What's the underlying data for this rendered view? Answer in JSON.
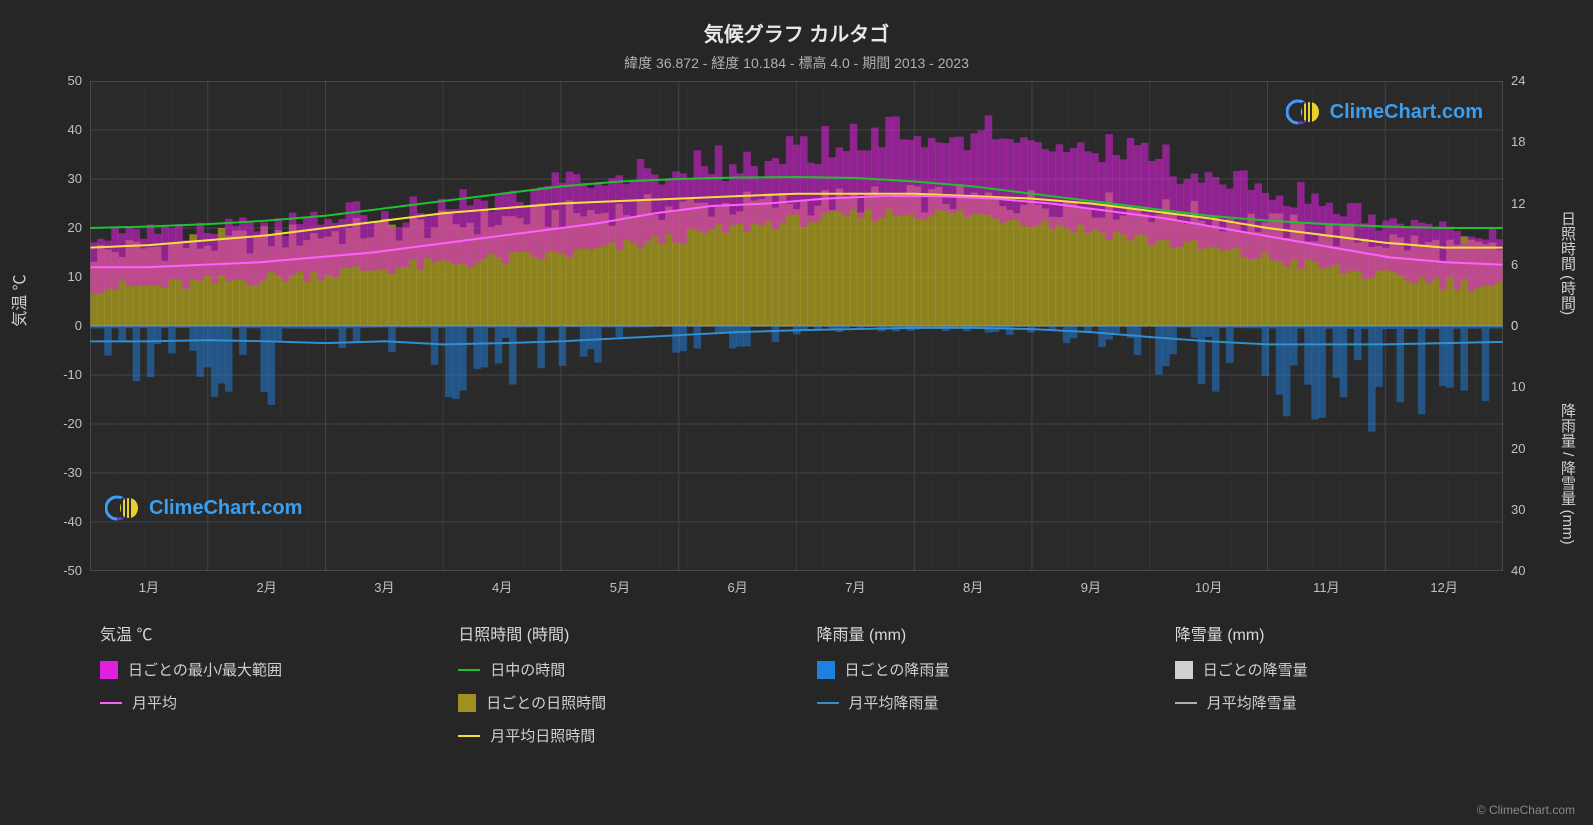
{
  "title": "気候グラフ カルタゴ",
  "subtitle": "緯度 36.872 - 経度 10.184 - 標高 4.0 - 期間 2013 - 2023",
  "watermark_text": "ClimeChart.com",
  "watermark_color": "#3a9ff0",
  "copyright": "© ClimeChart.com",
  "background_color": "#262626",
  "plot_bg": "#2a2a2a",
  "grid_color": "#444444",
  "axis_left": {
    "label": "気温 ℃",
    "min": -50,
    "max": 50,
    "ticks": [
      -50,
      -40,
      -30,
      -20,
      -10,
      0,
      10,
      20,
      30,
      40,
      50
    ]
  },
  "axis_right_top": {
    "label": "日照時間 (時間)",
    "min": 0,
    "max": 24,
    "ticks": [
      0,
      6,
      12,
      18,
      24
    ]
  },
  "axis_right_bottom": {
    "label": "降雨量 / 降雪量 (mm)",
    "min": 0,
    "max": 40,
    "ticks": [
      0,
      10,
      20,
      30,
      40
    ]
  },
  "x_axis": {
    "labels": [
      "1月",
      "2月",
      "3月",
      "4月",
      "5月",
      "6月",
      "7月",
      "8月",
      "9月",
      "10月",
      "11月",
      "12月"
    ]
  },
  "series": {
    "temp_range_daily": {
      "color": "#e020e0",
      "fill_opacity": 0.55,
      "type": "area-bars",
      "low": [
        8,
        8,
        9,
        10,
        11,
        12,
        13,
        14,
        15,
        17,
        19,
        21,
        22,
        23,
        23,
        22,
        20,
        18,
        16,
        14,
        12,
        10,
        9,
        8
      ],
      "high": [
        18,
        19,
        19,
        20,
        21,
        22,
        24,
        26,
        28,
        30,
        31,
        32,
        35,
        38,
        38,
        37,
        35,
        33,
        30,
        27,
        24,
        21,
        19,
        18
      ],
      "spike_high": [
        20,
        21,
        22,
        23,
        25,
        27,
        29,
        31,
        33,
        35,
        37,
        39,
        42,
        44,
        45,
        44,
        42,
        39,
        36,
        33,
        29,
        25,
        22,
        20
      ]
    },
    "temp_avg_monthly": {
      "color": "#ff60ff",
      "line_width": 2,
      "type": "line",
      "values": [
        12,
        12,
        12.5,
        13,
        14,
        15,
        16.5,
        18,
        19.5,
        21,
        23,
        24.5,
        25,
        26,
        26.5,
        26.5,
        26,
        25,
        23.5,
        22,
        20,
        18,
        16,
        14,
        13,
        12.5
      ]
    },
    "daylight": {
      "color": "#22c030",
      "line_width": 2,
      "type": "line",
      "values_temp_scale": [
        20,
        20.3,
        20.8,
        21.5,
        22.5,
        24,
        25.5,
        27,
        28.5,
        29.5,
        30,
        30.3,
        30.4,
        30.2,
        29.5,
        28.5,
        27,
        25.5,
        24,
        22.5,
        21.5,
        20.8,
        20.3,
        20,
        20
      ]
    },
    "sunshine_daily": {
      "color": "#b8a820",
      "fill_opacity": 0.7,
      "type": "area-bars",
      "values_temp_scale": [
        15,
        16,
        17,
        18,
        19,
        20,
        21,
        22,
        23,
        24,
        24.5,
        25,
        25.5,
        26,
        26,
        25.5,
        25,
        24,
        22.5,
        21,
        19,
        17.5,
        16,
        15
      ]
    },
    "sunshine_avg": {
      "color": "#f5e040",
      "line_width": 2,
      "type": "line",
      "values_temp_scale": [
        16,
        16.5,
        17.5,
        18.5,
        20,
        21.5,
        23,
        24,
        25,
        25.5,
        26,
        26.5,
        27,
        27,
        27,
        26.5,
        26,
        25,
        23.5,
        22,
        20,
        18.5,
        17,
        16,
        16
      ]
    },
    "rain_daily": {
      "color": "#2080e0",
      "fill_opacity": 0.5,
      "type": "bars-down",
      "values_mm": [
        8,
        7,
        6,
        8,
        9,
        5,
        7,
        6,
        4,
        5,
        3,
        2,
        1,
        0.5,
        0.5,
        0.5,
        1,
        2,
        4,
        6,
        8,
        9,
        10,
        9,
        8
      ]
    },
    "rain_avg": {
      "color": "#3090d0",
      "line_width": 2,
      "type": "line",
      "values_mm": [
        2.5,
        2.5,
        2.3,
        2.5,
        2.8,
        2.5,
        3,
        2.8,
        2.5,
        2,
        1.5,
        1,
        0.7,
        0.5,
        0.3,
        0.3,
        0.5,
        1,
        1.8,
        2.5,
        3,
        3,
        3,
        2.8,
        2.6
      ]
    },
    "snow_daily": {
      "color": "#d0d0d0",
      "type": "bars-down",
      "values_mm": []
    },
    "snow_avg": {
      "color": "#b0b0b0",
      "line_width": 2,
      "type": "line",
      "values_mm": []
    }
  },
  "legend": {
    "columns": [
      {
        "header": "気温 ℃",
        "items": [
          {
            "style": "swatch",
            "color": "#e020e0",
            "label": "日ごとの最小/最大範囲"
          },
          {
            "style": "line",
            "color": "#ff60ff",
            "label": "月平均"
          }
        ]
      },
      {
        "header": "日照時間 (時間)",
        "items": [
          {
            "style": "line",
            "color": "#22c030",
            "label": "日中の時間"
          },
          {
            "style": "swatch",
            "color": "#a09020",
            "label": "日ごとの日照時間"
          },
          {
            "style": "line",
            "color": "#f5e040",
            "label": "月平均日照時間"
          }
        ]
      },
      {
        "header": "降雨量 (mm)",
        "items": [
          {
            "style": "swatch",
            "color": "#2080e0",
            "label": "日ごとの降雨量"
          },
          {
            "style": "line",
            "color": "#3090d0",
            "label": "月平均降雨量"
          }
        ]
      },
      {
        "header": "降雪量 (mm)",
        "items": [
          {
            "style": "swatch",
            "color": "#d0d0d0",
            "label": "日ごとの降雪量"
          },
          {
            "style": "line",
            "color": "#b0b0b0",
            "label": "月平均降雪量"
          }
        ]
      }
    ]
  }
}
